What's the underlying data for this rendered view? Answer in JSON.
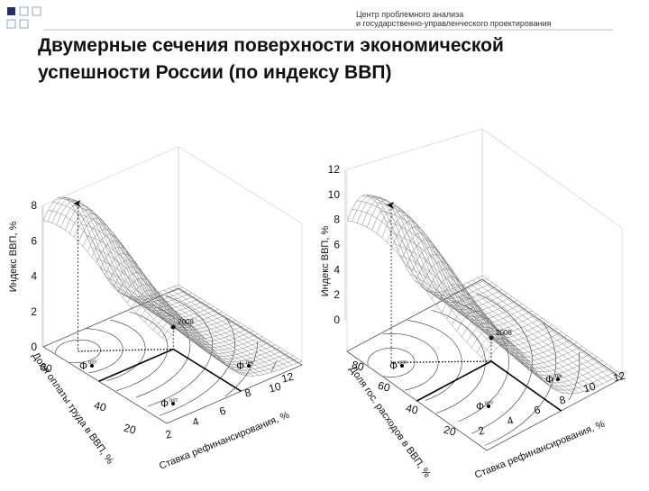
{
  "header": {
    "line1": "Центр проблемного анализа",
    "line2": "и государственно-управленческого проектирования"
  },
  "title": {
    "line1": "Двумерные сечения поверхности экономической",
    "line2": "успешности России (по индексу ВВП)"
  },
  "figures": [
    {
      "z_label": "Индекс ВВП, %",
      "z_ticks": [
        0,
        2,
        4,
        6,
        8
      ],
      "y_label": "Доля оплаты труда в ВВП, %",
      "y_ticks": [
        60,
        40,
        20
      ],
      "x_label": "Ставка рефинансирования, %",
      "x_ticks": [
        2,
        4,
        6,
        8,
        10,
        12
      ],
      "annotation": "2008",
      "phi_labels": [
        {
          "symbol": "Ф",
          "sub": "опт"
        },
        {
          "symbol": "Ф",
          "sub": "тек"
        },
        {
          "symbol": "Ф",
          "sub": "опт"
        }
      ]
    },
    {
      "z_label": "Индекс ВВП, %",
      "z_ticks": [
        0,
        2,
        4,
        6,
        8,
        10,
        12
      ],
      "y_label": "Доля гос. расходов в ВВП, %",
      "y_ticks": [
        80,
        60,
        40,
        20
      ],
      "x_label": "Ставка рефинансирования, %",
      "x_ticks": [
        2,
        4,
        6,
        8,
        10,
        12
      ],
      "annotation": "2008",
      "phi_labels": [
        {
          "symbol": "Ф",
          "sub": "опт"
        },
        {
          "symbol": "Ф",
          "sub": "тек"
        },
        {
          "symbol": "Ф",
          "sub": "опт"
        }
      ]
    }
  ]
}
